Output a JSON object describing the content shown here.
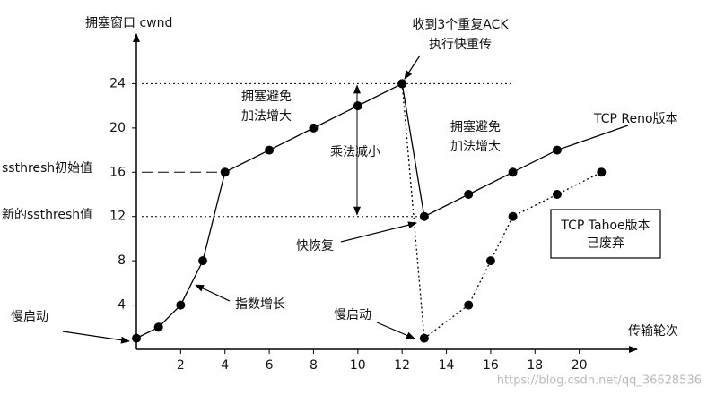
{
  "chart_data": {
    "type": "line",
    "y_label": "拥塞窗口 cwnd",
    "x_label": "传输轮次",
    "xlim": [
      0,
      22
    ],
    "ylim": [
      0,
      28
    ],
    "xticks": [
      2,
      4,
      6,
      8,
      10,
      12,
      14,
      16,
      18,
      20
    ],
    "yticks": [
      4,
      8,
      12,
      16,
      20,
      24
    ],
    "series": [
      {
        "name": "TCP Reno版本",
        "color": "#000000",
        "style": "solid",
        "x": [
          0,
          1,
          2,
          3,
          4,
          6,
          8,
          10,
          12,
          13,
          15,
          17,
          19
        ],
        "values": [
          1,
          2,
          4,
          8,
          16,
          18,
          20,
          22,
          24,
          12,
          14,
          16,
          18
        ]
      },
      {
        "name": "TCP Tahoe版本",
        "color": "#000000",
        "style": "dotted",
        "x": [
          12,
          13,
          15,
          16,
          17,
          19,
          21
        ],
        "values": [
          24,
          1,
          4,
          8,
          12,
          14,
          16
        ]
      }
    ],
    "annotations": [
      "收到3个重复ACK",
      "执行快重传",
      "拥塞避免",
      "加法增大",
      "乘法减小",
      "拥塞避免",
      "加法增大",
      "ssthresh初始值",
      "新的ssthresh值",
      "快恢复",
      "指数增长",
      "慢启动",
      "慢启动",
      "已废弃"
    ],
    "watermark": "https://blog.csdn.net/qq_36628536"
  }
}
